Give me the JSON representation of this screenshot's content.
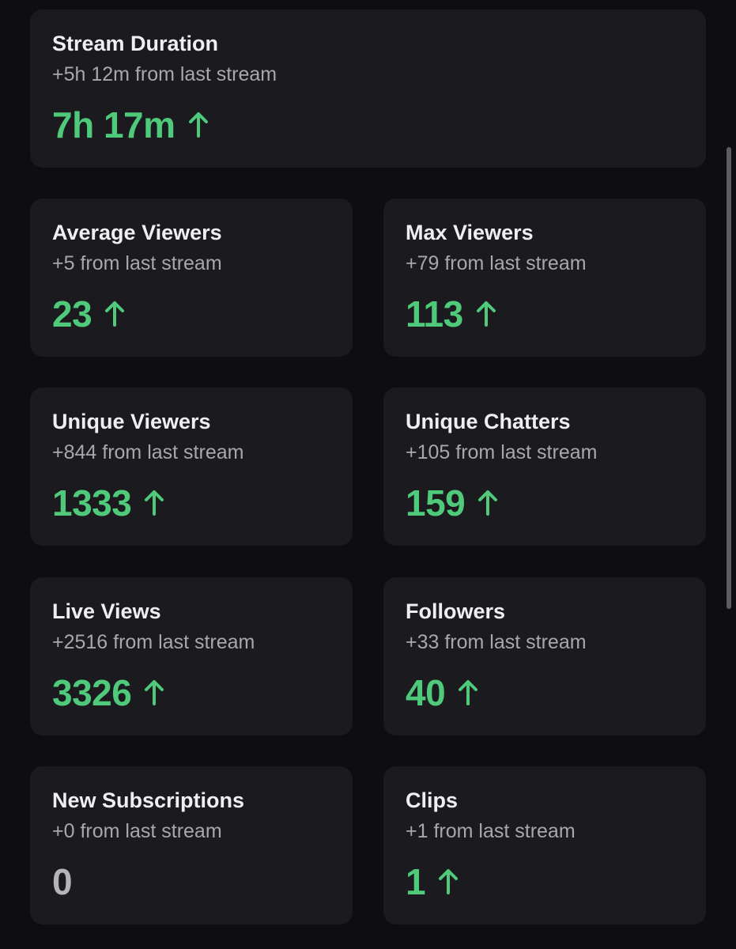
{
  "colors": {
    "background": "#0e0e10",
    "card": "#1b1b1f",
    "positive": "#4fc97a",
    "neutral": "#b4b4ba"
  },
  "stats": {
    "stream_duration": {
      "title": "Stream Duration",
      "delta": "+5h 12m from last stream",
      "value": "7h 17m",
      "trend": "up",
      "icon": "arrow-up-icon"
    },
    "average_viewers": {
      "title": "Average Viewers",
      "delta": "+5 from last stream",
      "value": "23",
      "trend": "up",
      "icon": "arrow-up-icon"
    },
    "max_viewers": {
      "title": "Max Viewers",
      "delta": "+79 from last stream",
      "value": "113",
      "trend": "up",
      "icon": "arrow-up-icon"
    },
    "unique_viewers": {
      "title": "Unique Viewers",
      "delta": "+844 from last stream",
      "value": "1333",
      "trend": "up",
      "icon": "arrow-up-icon"
    },
    "unique_chatters": {
      "title": "Unique Chatters",
      "delta": "+105 from last stream",
      "value": "159",
      "trend": "up",
      "icon": "arrow-up-icon"
    },
    "live_views": {
      "title": "Live Views",
      "delta": "+2516 from last stream",
      "value": "3326",
      "trend": "up",
      "icon": "arrow-up-icon"
    },
    "followers": {
      "title": "Followers",
      "delta": "+33 from last stream",
      "value": "40",
      "trend": "up",
      "icon": "arrow-up-icon"
    },
    "new_subscriptions": {
      "title": "New Subscriptions",
      "delta": "+0 from last stream",
      "value": "0",
      "trend": "none"
    },
    "clips": {
      "title": "Clips",
      "delta": "+1 from last stream",
      "value": "1",
      "trend": "up",
      "icon": "arrow-up-icon"
    }
  }
}
